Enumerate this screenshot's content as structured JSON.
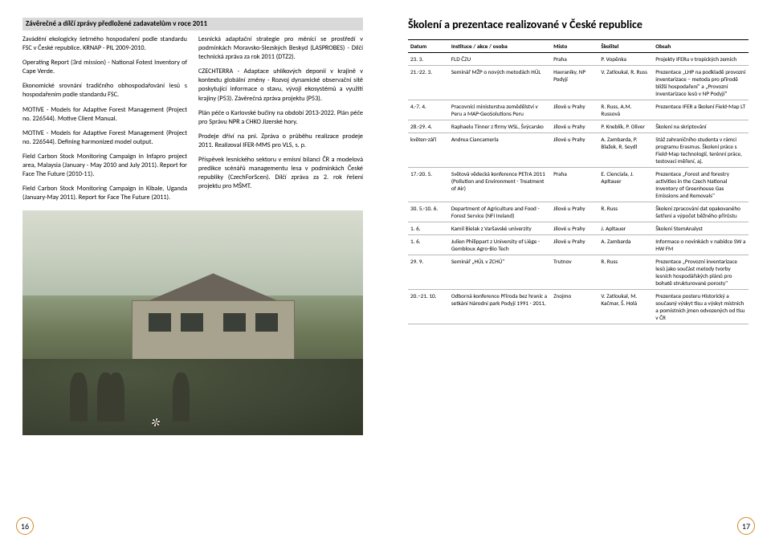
{
  "left": {
    "section_title": "Závěrečné a dílčí zprávy předložené zadavatelům v roce 2011",
    "paragraphs": [
      "Zavádění ekologicky šetrného hospodaření podle standardu FSC v České republice. KRNAP - PIL 2009-2010.",
      "Operating Report (3rd mission) - National Fotest Inventory of Cape Verde.",
      "Ekonomické srovnání tradičního obhospodařování lesů s hospodařením podle standardu FSC.",
      "MOTIVE - Models for Adaptive Forest Management (Project no. 226544). Motive Client Manual.",
      "MOTIVE - Models for Adaptive Forest Management (Project no. 226544). Defining harmonized model output.",
      "Field Carbon Stock Monitoring Campaign in Infapro project area, Malaysia (January - May 2010 and July 2011). Report for Face The Future (2010-11).",
      "Field Carbon Stock Monitoring Campaign in Kibale, Uganda (January-May 2011). Report for Face The Future (2011).",
      "Lesnická adaptační strategie pro měnící se prostředí v podmínkách Moravsko-Slezských Beskyd (LASPROBES) - Dílčí technická zpráva za rok 2011 (DTZ2).",
      "CZECHTERRA - Adaptace uhlíkových deponií v krajině v kontextu globální změny - Rozvoj dynamické observační sítě poskytující informace o stavu, vývoji ekosystémů a využití krajiny (P53). Závěrečná zpráva projektu (P53).",
      "Plán péče o Karlovské bučiny na období 2013-2022. Plán péče pro Správu NPR a CHKO Jizerské hory.",
      "Prodeje dříví na pni. Zpráva o průběhu realizace prodeje 2011. Realizoval IFER-MMS pro VLS, s. p.",
      "Příspěvek lesnického sektoru v emisní bilanci ČR a modelová predikce scénářů managementu lesa v podmínkách České republiky (CzechForScen). Dílčí zpráva za 2. rok řešení projektu pro MŠMT."
    ],
    "page_number": "16"
  },
  "right": {
    "title": "Školení a prezentace realizované v České republice",
    "columns": [
      "Datum",
      "Instituce / akce / osoba",
      "Místo",
      "Školitel",
      "Obsah"
    ],
    "rows": [
      [
        "23. 3.",
        "FLD ČZU",
        "Praha",
        "P. Vopěnka",
        "Projekty IFERu v tropických zemích"
      ],
      [
        "21.-22. 3.",
        "Seminář MŽP o nových metodách HÚL",
        "Havraníky, NP Podyjí",
        "V. Zatloukal, R. Russ",
        "Prezentace „LHP na podkladě provozní inventarizace – metoda pro přírodě bližší hospodaření\" a „Provozní inventarizace lesů v NP Podyjí\""
      ],
      [
        "4.-7. 4.",
        "Pracovníci ministerstva zemědělství v Peru a MAP-GeoSolutions Peru",
        "Jílové u Prahy",
        "R. Russ, A.M. Russová",
        "Prezentace IFER a školení Field-Map LT"
      ],
      [
        "28.-29. 4.",
        "Raphaelu Tinner z firmy WSL, Švýcarsko",
        "Jílové u Prahy",
        "P. Kneblík, P. Oliver",
        "Školení na skriptování"
      ],
      [
        "květen-září",
        "Andrea Ciancamerla",
        "Jílové u Prahy",
        "A. Zambarda, P. Blažek, R. Seydl",
        "Stáž zahraničního studenta v rámci programu Erasmus. Školení práce s Field-Map technologií, terénní práce, testovací měření, aj."
      ],
      [
        "17.-20. 5.",
        "Světová vědecká konference PETrA 2011 (Pollution and Environment - Treatment of Air)",
        "Praha",
        "E. Cienciala, J. Apltauer",
        "Prezentace „Forest and forestry activities in the Czech National Inventory of Greenhouse Gas Emissions and Removals\""
      ],
      [
        "30. 5.-10. 6.",
        "Department of Agriculture and Food - Forest Service (NFI Ireland)",
        "Jílové u Prahy",
        "R. Russ",
        "Školení zpracování dat opakovaného šetření a výpočet běžného přírůstu"
      ],
      [
        "1. 6.",
        "Kamil Bielak z Varšavské univerzity",
        "Jílové u Prahy",
        "J. Apltauer",
        "Školení StemAnalyst"
      ],
      [
        "1. 6.",
        "Julien Philippart z University of Liège - Gembloux Agro-Bio Tech",
        "Jílové u Prahy",
        "A. Zambarda",
        "Informace o novinkách v nabídce SW a HW FM"
      ],
      [
        "29. 9.",
        "Seminář „HÚL v ZCHÚ\"",
        "Trutnov",
        "R. Russ",
        "Prezentace „Provozní inventarizace lesů jako součást metody tvorby lesních hospodářských plánů pro bohatě strukturované porosty\""
      ],
      [
        "20.–21. 10.",
        "Odborná konference Příroda bez hranic a setkání Národní park Podyjí 1991 - 2011,",
        "Znojmo",
        "V. Zatloukal, M. Kačmar, Š. Holá",
        "Prezentace posteru Historický a současný výskyt tisu a výskyt místních a pomístních jmen odvozených od tisu v ČR"
      ]
    ],
    "page_number": "17"
  }
}
